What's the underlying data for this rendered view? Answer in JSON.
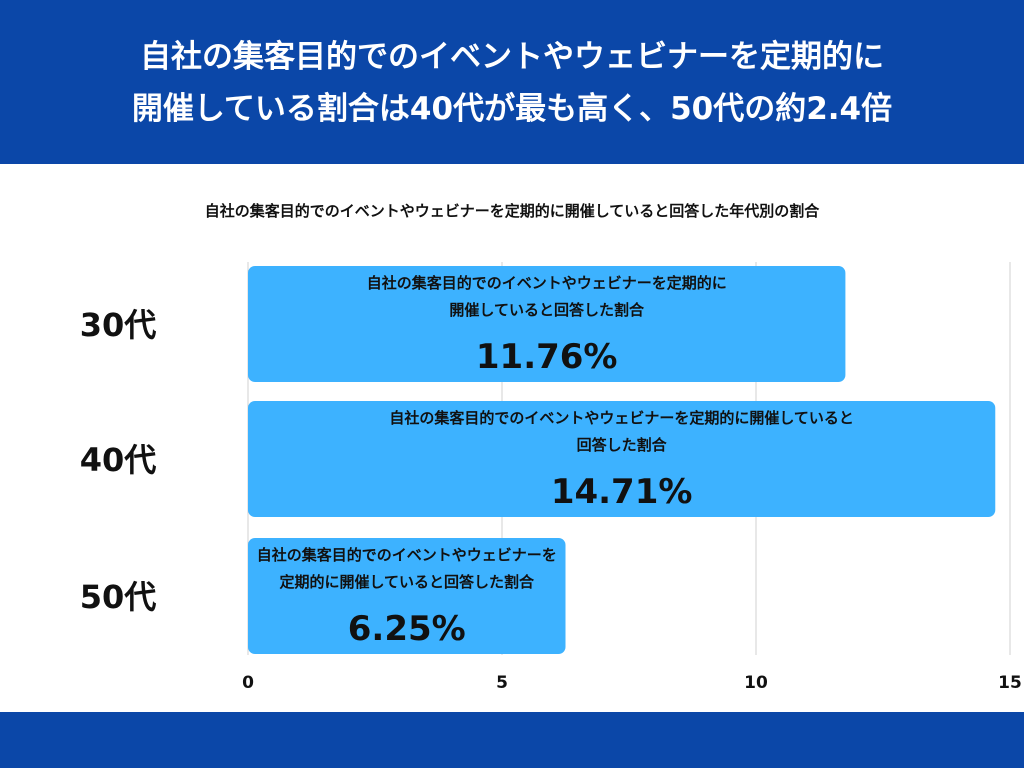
{
  "header": {
    "title_line1": "自社の集客目的でのイベントやウェビナーを定期的に",
    "title_line2": "開催している割合は40代が最も高く、50代の約2.4倍"
  },
  "colors": {
    "header_bg": "#0b47a8",
    "bar": "#3db2ff",
    "grid": "#d0d0d0",
    "text": "#111111"
  },
  "chart_data": {
    "type": "bar",
    "orientation": "horizontal",
    "title": "自社の集客目的でのイベントやウェビナーを定期的に開催していると回答した年代別の割合",
    "categories": [
      "30代",
      "40代",
      "50代"
    ],
    "values": [
      11.76,
      14.71,
      6.25
    ],
    "value_labels": [
      "11.76%",
      "14.71%",
      "6.25%"
    ],
    "bar_text_lines": [
      [
        "自社の集客目的でのイベントやウェビナーを定期的に",
        "開催していると回答した割合"
      ],
      [
        "自社の集客目的でのイベントやウェビナーを定期的に開催していると",
        "回答した割合"
      ],
      [
        "自社の集客目的でのイベントやウェビナーを",
        "定期的に開催していると回答した割合"
      ]
    ],
    "xlim": [
      0,
      15
    ],
    "xticks": [
      0,
      5,
      10,
      15
    ],
    "grid": true,
    "xlabel": "",
    "ylabel": ""
  }
}
